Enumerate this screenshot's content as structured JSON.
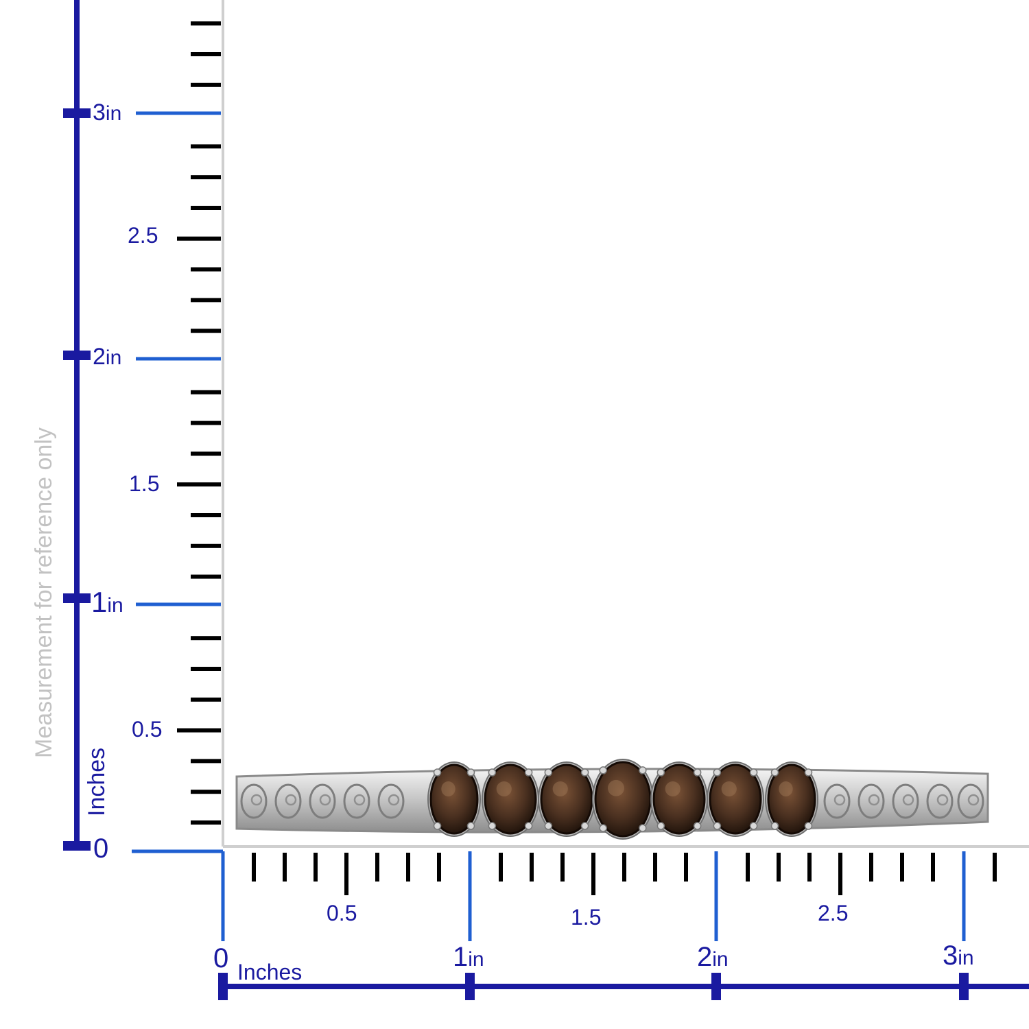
{
  "side_note": "Measurement for reference only",
  "vertical_ruler": {
    "unit_label": "Inches",
    "zero_label": "0",
    "major": [
      {
        "num": "1",
        "unit": "in"
      },
      {
        "num": "2",
        "unit": "in"
      },
      {
        "num": "3",
        "unit": "in"
      }
    ],
    "half_labels": [
      "0.5",
      "1.5",
      "2.5"
    ]
  },
  "horizontal_ruler": {
    "unit_label": "Inches",
    "zero_label": "0",
    "major": [
      {
        "num": "1",
        "unit": "in"
      },
      {
        "num": "2",
        "unit": "in"
      },
      {
        "num": "3",
        "unit": "in"
      }
    ],
    "half_labels": [
      "0.5",
      "1.5",
      "2.5"
    ]
  },
  "product": {
    "item": "bracelet",
    "stone_count": 7,
    "metal_color": "#c9c9c9",
    "stone_color": "#4a3020"
  },
  "colors": {
    "ruler_dark": "#1a1aa0",
    "ruler_light": "#1f5fd1",
    "tick": "#000000",
    "note": "#c2c2c2"
  }
}
